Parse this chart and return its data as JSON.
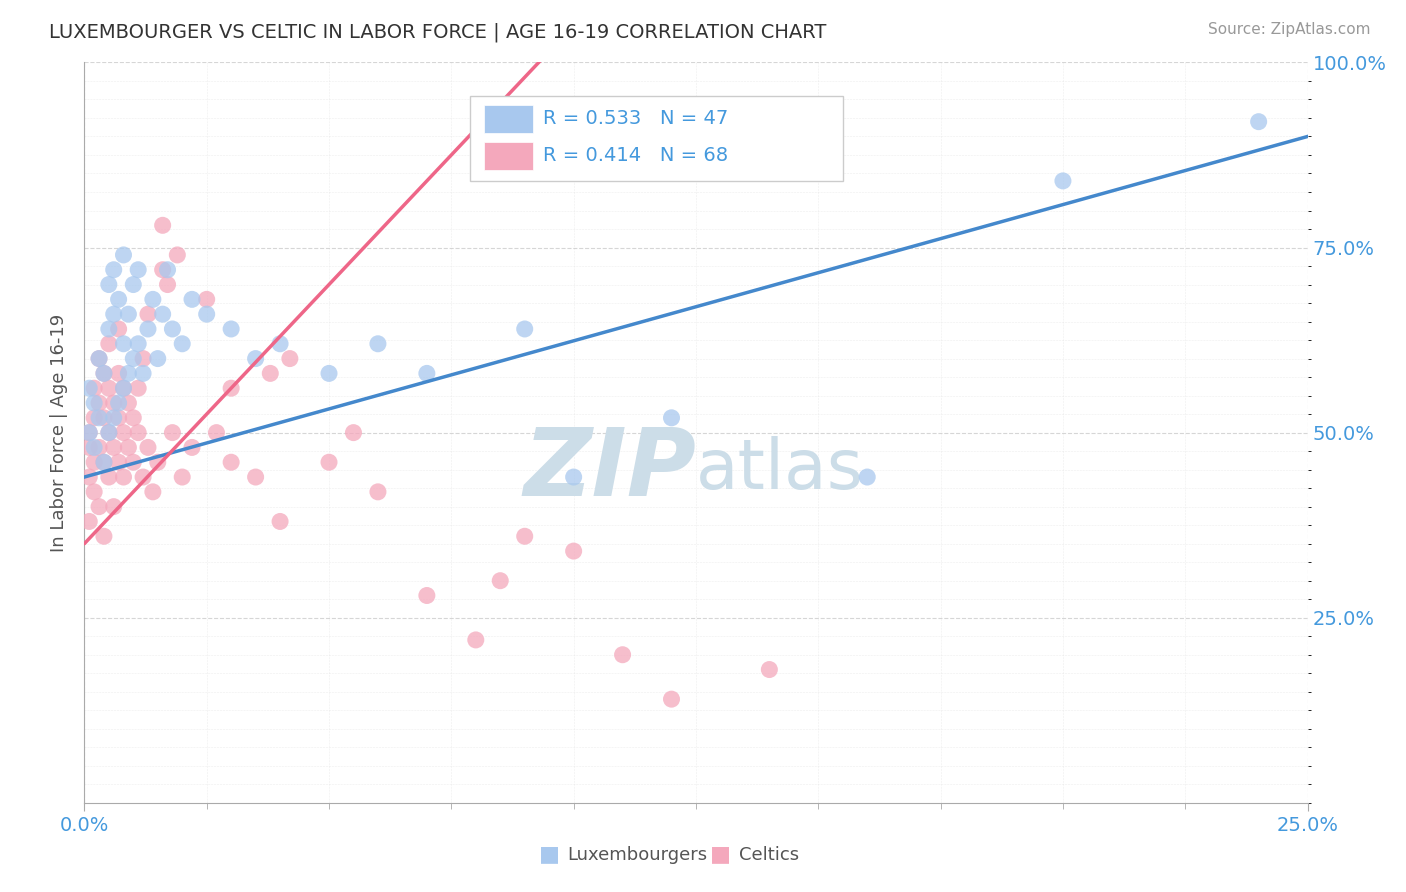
{
  "title": "LUXEMBOURGER VS CELTIC IN LABOR FORCE | AGE 16-19 CORRELATION CHART",
  "source_text": "Source: ZipAtlas.com",
  "ylabel": "In Labor Force | Age 16-19",
  "xlim": [
    0.0,
    0.25
  ],
  "ylim": [
    0.0,
    1.0
  ],
  "R_blue": 0.533,
  "N_blue": 47,
  "R_pink": 0.414,
  "N_pink": 68,
  "blue_color": "#a8c8ee",
  "pink_color": "#f4a8bc",
  "trend_blue_color": "#4488cc",
  "trend_pink_color": "#ee6688",
  "trend_pink_dashed_color": "#ddaabb",
  "watermark_color": "#ccdde8",
  "background_color": "#ffffff",
  "blue_scatter": [
    [
      0.001,
      0.5
    ],
    [
      0.001,
      0.56
    ],
    [
      0.002,
      0.48
    ],
    [
      0.002,
      0.54
    ],
    [
      0.003,
      0.52
    ],
    [
      0.003,
      0.6
    ],
    [
      0.004,
      0.46
    ],
    [
      0.004,
      0.58
    ],
    [
      0.005,
      0.5
    ],
    [
      0.005,
      0.64
    ],
    [
      0.005,
      0.7
    ],
    [
      0.006,
      0.52
    ],
    [
      0.006,
      0.66
    ],
    [
      0.006,
      0.72
    ],
    [
      0.007,
      0.54
    ],
    [
      0.007,
      0.68
    ],
    [
      0.008,
      0.56
    ],
    [
      0.008,
      0.62
    ],
    [
      0.008,
      0.74
    ],
    [
      0.009,
      0.58
    ],
    [
      0.009,
      0.66
    ],
    [
      0.01,
      0.6
    ],
    [
      0.01,
      0.7
    ],
    [
      0.011,
      0.62
    ],
    [
      0.011,
      0.72
    ],
    [
      0.012,
      0.58
    ],
    [
      0.013,
      0.64
    ],
    [
      0.014,
      0.68
    ],
    [
      0.015,
      0.6
    ],
    [
      0.016,
      0.66
    ],
    [
      0.017,
      0.72
    ],
    [
      0.018,
      0.64
    ],
    [
      0.02,
      0.62
    ],
    [
      0.022,
      0.68
    ],
    [
      0.025,
      0.66
    ],
    [
      0.03,
      0.64
    ],
    [
      0.035,
      0.6
    ],
    [
      0.04,
      0.62
    ],
    [
      0.05,
      0.58
    ],
    [
      0.06,
      0.62
    ],
    [
      0.07,
      0.58
    ],
    [
      0.09,
      0.64
    ],
    [
      0.1,
      0.44
    ],
    [
      0.12,
      0.52
    ],
    [
      0.16,
      0.44
    ],
    [
      0.2,
      0.84
    ],
    [
      0.24,
      0.92
    ]
  ],
  "pink_scatter": [
    [
      0.001,
      0.5
    ],
    [
      0.001,
      0.44
    ],
    [
      0.001,
      0.48
    ],
    [
      0.001,
      0.38
    ],
    [
      0.002,
      0.52
    ],
    [
      0.002,
      0.46
    ],
    [
      0.002,
      0.42
    ],
    [
      0.002,
      0.56
    ],
    [
      0.003,
      0.48
    ],
    [
      0.003,
      0.54
    ],
    [
      0.003,
      0.4
    ],
    [
      0.003,
      0.6
    ],
    [
      0.004,
      0.46
    ],
    [
      0.004,
      0.52
    ],
    [
      0.004,
      0.58
    ],
    [
      0.004,
      0.36
    ],
    [
      0.005,
      0.5
    ],
    [
      0.005,
      0.44
    ],
    [
      0.005,
      0.56
    ],
    [
      0.005,
      0.62
    ],
    [
      0.006,
      0.48
    ],
    [
      0.006,
      0.54
    ],
    [
      0.006,
      0.4
    ],
    [
      0.007,
      0.52
    ],
    [
      0.007,
      0.46
    ],
    [
      0.007,
      0.58
    ],
    [
      0.007,
      0.64
    ],
    [
      0.008,
      0.5
    ],
    [
      0.008,
      0.44
    ],
    [
      0.008,
      0.56
    ],
    [
      0.009,
      0.48
    ],
    [
      0.009,
      0.54
    ],
    [
      0.01,
      0.46
    ],
    [
      0.01,
      0.52
    ],
    [
      0.011,
      0.5
    ],
    [
      0.011,
      0.56
    ],
    [
      0.012,
      0.44
    ],
    [
      0.012,
      0.6
    ],
    [
      0.013,
      0.48
    ],
    [
      0.013,
      0.66
    ],
    [
      0.014,
      0.42
    ],
    [
      0.015,
      0.46
    ],
    [
      0.016,
      0.72
    ],
    [
      0.016,
      0.78
    ],
    [
      0.017,
      0.7
    ],
    [
      0.018,
      0.5
    ],
    [
      0.019,
      0.74
    ],
    [
      0.02,
      0.44
    ],
    [
      0.022,
      0.48
    ],
    [
      0.025,
      0.68
    ],
    [
      0.027,
      0.5
    ],
    [
      0.03,
      0.46
    ],
    [
      0.03,
      0.56
    ],
    [
      0.035,
      0.44
    ],
    [
      0.038,
      0.58
    ],
    [
      0.04,
      0.38
    ],
    [
      0.042,
      0.6
    ],
    [
      0.05,
      0.46
    ],
    [
      0.055,
      0.5
    ],
    [
      0.06,
      0.42
    ],
    [
      0.07,
      0.28
    ],
    [
      0.08,
      0.22
    ],
    [
      0.085,
      0.3
    ],
    [
      0.09,
      0.36
    ],
    [
      0.1,
      0.34
    ],
    [
      0.11,
      0.2
    ],
    [
      0.12,
      0.14
    ],
    [
      0.14,
      0.18
    ]
  ],
  "blue_trend": [
    0.0,
    0.25,
    0.44,
    0.9
  ],
  "pink_trend_solid": [
    0.0,
    0.1,
    0.35,
    1.05
  ],
  "pink_trend_dashed": [
    0.1,
    0.25,
    1.05,
    1.4
  ]
}
